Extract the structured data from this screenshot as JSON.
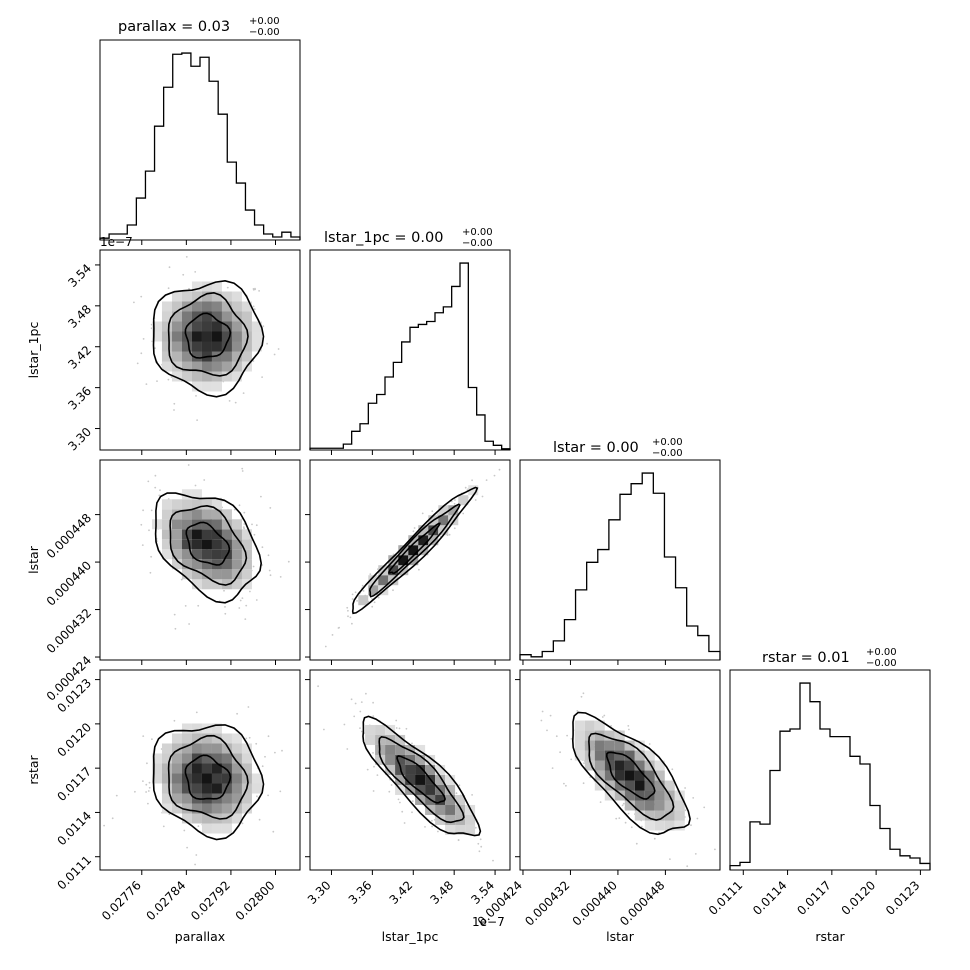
{
  "figure": {
    "kind": "corner plot"
  },
  "chart_data": {
    "type": "corner",
    "parameters": [
      "parallax",
      "lstar_1pc",
      "lstar",
      "rstar"
    ],
    "titles": [
      {
        "main": "parallax = 0.03",
        "upper": "+0.00",
        "lower": "−0.00"
      },
      {
        "main": "lstar_1pc = 0.00",
        "upper": "+0.00",
        "lower": "−0.00"
      },
      {
        "main": "lstar = 0.00",
        "upper": "+0.00",
        "lower": "−0.00"
      },
      {
        "main": "rstar = 0.01",
        "upper": "+0.00",
        "lower": "−0.00"
      }
    ],
    "axis_labels": [
      "parallax",
      "lstar_1pc",
      "lstar",
      "rstar"
    ],
    "offset_label": "1e−7",
    "ticks": {
      "parallax": {
        "range": [
          0.027685,
          0.028044
        ],
        "values": [
          0.02776,
          0.02784,
          0.02792,
          0.028
        ],
        "labels": [
          "0.02776",
          "0.02784",
          "0.02792",
          "0.02800"
        ]
      },
      "lstar_1pc": {
        "range": [
          3.2685,
          3.5619
        ],
        "values": [
          3.3,
          3.36,
          3.42,
          3.48,
          3.54
        ],
        "labels": [
          "3.30",
          "3.36",
          "3.42",
          "3.48",
          "3.54"
        ]
      },
      "lstar": {
        "range": [
          0.0004235,
          0.0004572
        ],
        "values": [
          0.000424,
          0.000432,
          0.00044,
          0.000448
        ],
        "labels": [
          "0.000424",
          "0.000432",
          "0.000440",
          "0.000448"
        ]
      },
      "rstar": {
        "range": [
          0.01101,
          0.012365
        ],
        "values": [
          0.0111,
          0.0114,
          0.0117,
          0.012,
          0.0123
        ],
        "labels": [
          "0.0111",
          "0.0114",
          "0.0117",
          "0.0120",
          "0.0123"
        ]
      }
    },
    "histograms": {
      "parallax": [
        0.3,
        1,
        1,
        2.5,
        7,
        11.5,
        19,
        25.5,
        31,
        31.2,
        29,
        30.5,
        26.5,
        21,
        13,
        9.5,
        5,
        2.5,
        1,
        0.5,
        1.3,
        0.5
      ],
      "lstar_1pc": [
        0.3,
        0.3,
        0.3,
        0.3,
        1,
        3.2,
        4.5,
        8,
        9.5,
        12.5,
        15,
        18.5,
        21,
        21.5,
        22,
        23.5,
        24.5,
        28,
        32,
        10.7,
        6,
        1.5,
        0.8,
        0.2
      ],
      "lstar": [
        0.5,
        0.3,
        0.8,
        1.8,
        3.8,
        6.6,
        9.2,
        10.4,
        13.2,
        15.6,
        16.6,
        17.6,
        15.7,
        9.7,
        6.8,
        3.2,
        2.3,
        0.8
      ],
      "rstar": [
        0.4,
        0.7,
        4.4,
        4.2,
        9.1,
        12.7,
        12.9,
        17.1,
        15.4,
        12.9,
        12.2,
        12.2,
        10.4,
        9.7,
        5.9,
        3.8,
        1.9,
        1.3,
        1.1,
        0.6
      ]
    },
    "pair_centers": {
      "lstar_1pc_vs_parallax": {
        "x": 0.027877,
        "y": 3.435
      },
      "lstar_vs_parallax": {
        "x": 0.027877,
        "y": 0.000443
      },
      "lstar_vs_lstar_1pc": {
        "x": 3.42,
        "y": 0.000442
      },
      "rstar_vs_parallax": {
        "x": 0.027877,
        "y": 0.01163
      },
      "rstar_vs_lstar_1pc": {
        "x": 3.43,
        "y": 0.01162
      },
      "rstar_vs_lstar": {
        "x": 0.000442,
        "y": 0.01165
      }
    },
    "grid": false,
    "legend": "none"
  }
}
